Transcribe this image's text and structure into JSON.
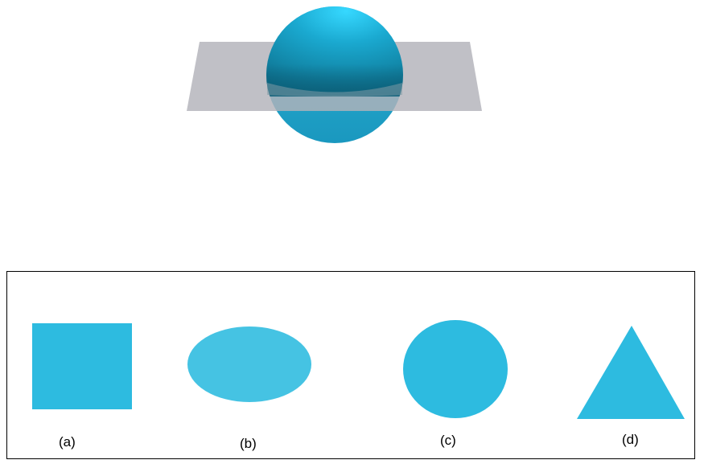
{
  "colors": {
    "shape_fill": "#2dbbe0",
    "ellipse_fill": "#45c3e3",
    "plane_fill": "#b2b2b9",
    "sphere_light": "#33d4ff",
    "sphere_dark": "#0d6f8b",
    "panel_border": "#000000"
  },
  "scene": {
    "objects": [
      "sphere",
      "cutting-plane"
    ]
  },
  "options": [
    {
      "label": "(a)",
      "shape": "square"
    },
    {
      "label": "(b)",
      "shape": "ellipse"
    },
    {
      "label": "(c)",
      "shape": "circle"
    },
    {
      "label": "(d)",
      "shape": "triangle"
    }
  ]
}
